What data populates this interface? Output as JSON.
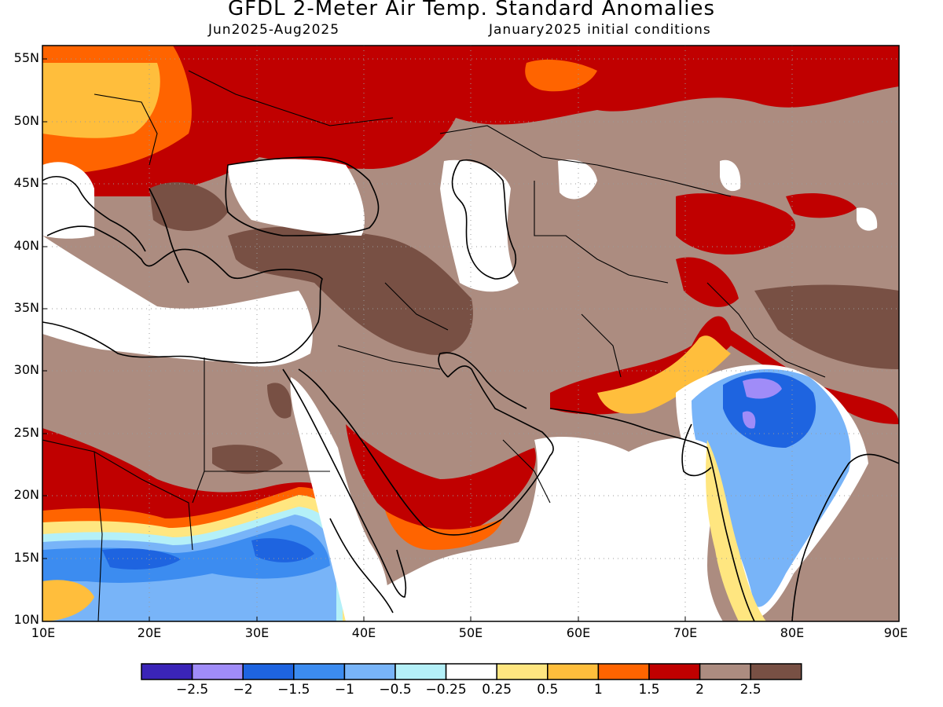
{
  "header": {
    "title": "GFDL 2-Meter Air Temp. Standard Anomalies",
    "period": "Jun2025-Aug2025",
    "init": "January2025 initial conditions"
  },
  "map": {
    "lon_range": [
      10,
      90
    ],
    "lat_range": [
      10,
      56
    ],
    "grid": true,
    "lat_labels": [
      "55N",
      "50N",
      "45N",
      "40N",
      "35N",
      "30N",
      "25N",
      "20N",
      "15N",
      "10N"
    ],
    "lon_labels": [
      "10E",
      "20E",
      "30E",
      "40E",
      "50E",
      "60E",
      "70E",
      "80E",
      "90E"
    ]
  },
  "colorbar": {
    "colors": [
      "#3a24b8",
      "#a08cf8",
      "#1e64e0",
      "#3c8cf0",
      "#78b4f8",
      "#b4f0f8",
      "#ffffff",
      "#ffe680",
      "#ffbe3c",
      "#ff6400",
      "#c00000",
      "#ac8c80",
      "#785044"
    ],
    "labels": [
      "-2.5",
      "-2",
      "-1.5",
      "-1",
      "-0.5",
      "-0.25",
      "0.25",
      "0.5",
      "1",
      "1.5",
      "2",
      "2.5"
    ]
  }
}
